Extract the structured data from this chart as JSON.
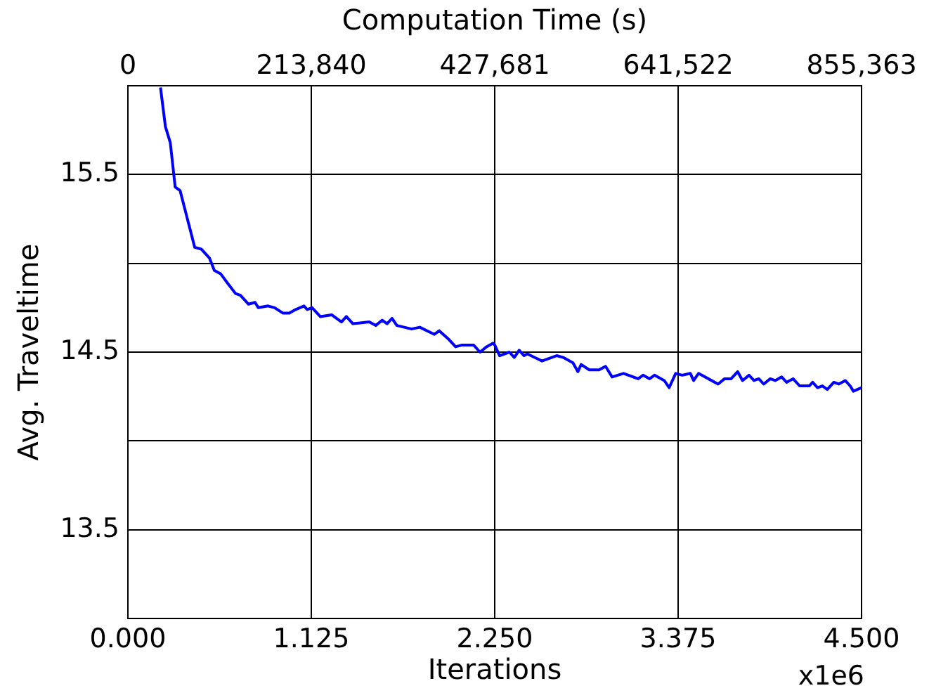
{
  "chart_data": {
    "type": "line",
    "xlabel": "Iterations",
    "x2label": "Computation Time (s)",
    "ylabel": "Avg. Traveltime",
    "annotations": [
      "x1e6"
    ],
    "xlim": [
      0,
      4.5
    ],
    "xticks": [
      {
        "value": 0,
        "label": "0.000"
      },
      {
        "value": 1.125,
        "label": "1.125"
      },
      {
        "value": 2.25,
        "label": "2.250"
      },
      {
        "value": 3.375,
        "label": "3.375"
      },
      {
        "value": 4.5,
        "label": "4.500"
      }
    ],
    "x2lim": [
      0,
      855363
    ],
    "x2ticks": [
      {
        "value": 0,
        "label": "0"
      },
      {
        "value": 213840,
        "label": "213,840"
      },
      {
        "value": 427681,
        "label": "427,681"
      },
      {
        "value": 641522,
        "label": "641,522"
      },
      {
        "value": 855363,
        "label": "855,363"
      }
    ],
    "ylim": [
      13,
      16
    ],
    "yticks": [
      13.5,
      {
        "value": 14,
        "label": null
      },
      14.5,
      {
        "value": 15,
        "label": null
      },
      15.5
    ],
    "grid": true,
    "legend": false,
    "marker": "none",
    "line_style": "solid",
    "series": [
      {
        "color": "#0000ff",
        "x": [
          0.2,
          0.23,
          0.26,
          0.29,
          0.32,
          0.41,
          0.45,
          0.5,
          0.53,
          0.57,
          0.61,
          0.66,
          0.69,
          0.74,
          0.78,
          0.8,
          0.86,
          0.9,
          0.95,
          0.99,
          1.03,
          1.08,
          1.1,
          1.13,
          1.18,
          1.25,
          1.31,
          1.34,
          1.38,
          1.48,
          1.52,
          1.56,
          1.59,
          1.62,
          1.65,
          1.74,
          1.79,
          1.88,
          1.91,
          1.97,
          2.01,
          2.05,
          2.12,
          2.16,
          2.2,
          2.24,
          2.25,
          2.28,
          2.34,
          2.37,
          2.4,
          2.43,
          2.45,
          2.54,
          2.63,
          2.67,
          2.73,
          2.76,
          2.78,
          2.83,
          2.89,
          2.93,
          2.97,
          3.04,
          3.13,
          3.16,
          3.2,
          3.23,
          3.29,
          3.32,
          3.36,
          3.4,
          3.45,
          3.47,
          3.5,
          3.62,
          3.66,
          3.7,
          3.74,
          3.77,
          3.81,
          3.84,
          3.87,
          3.9,
          3.94,
          3.97,
          4.01,
          4.04,
          4.08,
          4.12,
          4.18,
          4.2,
          4.23,
          4.26,
          4.29,
          4.33,
          4.36,
          4.4,
          4.43,
          4.45,
          4.5
        ],
        "values": [
          15.99,
          15.77,
          15.68,
          15.43,
          15.41,
          15.09,
          15.08,
          15.03,
          14.96,
          14.94,
          14.89,
          14.83,
          14.82,
          14.77,
          14.78,
          14.75,
          14.76,
          14.75,
          14.72,
          14.72,
          14.74,
          14.76,
          14.74,
          14.75,
          14.7,
          14.71,
          14.67,
          14.7,
          14.66,
          14.67,
          14.65,
          14.68,
          14.66,
          14.69,
          14.65,
          14.63,
          14.64,
          14.6,
          14.62,
          14.57,
          14.53,
          14.54,
          14.54,
          14.5,
          14.53,
          14.55,
          14.54,
          14.48,
          14.5,
          14.47,
          14.51,
          14.48,
          14.49,
          14.45,
          14.48,
          14.47,
          14.44,
          14.39,
          14.43,
          14.4,
          14.4,
          14.42,
          14.36,
          14.38,
          14.35,
          14.37,
          14.35,
          14.37,
          14.34,
          14.3,
          14.38,
          14.37,
          14.38,
          14.34,
          14.38,
          14.32,
          14.35,
          14.35,
          14.39,
          14.34,
          14.37,
          14.34,
          14.35,
          14.32,
          14.35,
          14.34,
          14.36,
          14.33,
          14.35,
          14.31,
          14.31,
          14.33,
          14.3,
          14.31,
          14.29,
          14.33,
          14.32,
          14.34,
          14.31,
          14.28,
          14.3
        ]
      }
    ]
  }
}
